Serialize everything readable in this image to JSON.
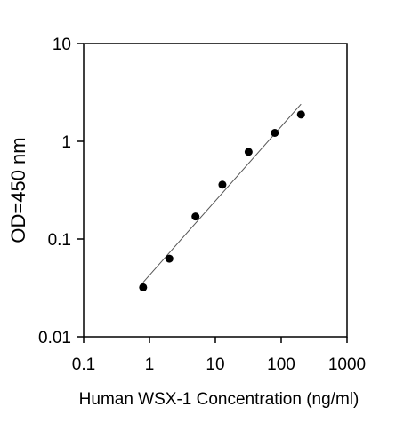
{
  "chart_data": {
    "type": "scatter",
    "xscale": "log",
    "yscale": "log",
    "xlim": [
      0.1,
      1000
    ],
    "ylim": [
      0.01,
      10
    ],
    "xlabel": "Human WSX-1 Concentration (ng/ml)",
    "ylabel": "OD=450 nm",
    "xticks": [
      0.1,
      1,
      10,
      100,
      1000
    ],
    "xtick_labels": [
      "0.1",
      "1",
      "10",
      "100",
      "1000"
    ],
    "yticks": [
      0.01,
      0.1,
      1,
      10
    ],
    "ytick_labels": [
      "0.01",
      "0.1",
      "1",
      "10"
    ],
    "grid": false,
    "legend": "none",
    "series": [
      {
        "x": [
          0.8,
          2,
          5,
          12.8,
          32,
          80,
          200
        ],
        "y": [
          0.032,
          0.063,
          0.17,
          0.36,
          0.78,
          1.22,
          1.88
        ]
      }
    ],
    "fit_line": {
      "x": [
        0.8,
        200
      ],
      "y": [
        0.036,
        2.4
      ]
    },
    "colors": {
      "points": "#000000",
      "fit_line": "#555555",
      "axes": "#000000"
    }
  }
}
